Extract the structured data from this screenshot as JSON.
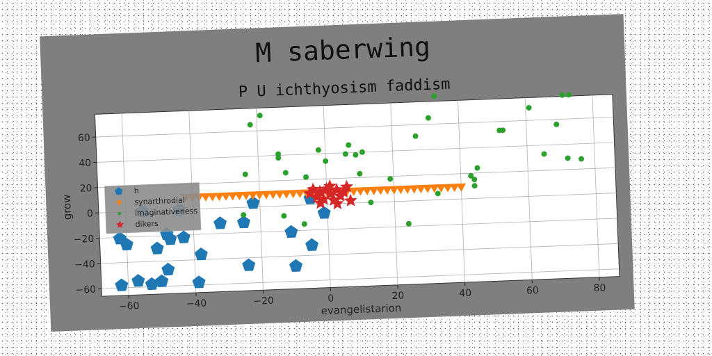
{
  "chart_data": {
    "type": "scatter",
    "title": "M saberwing",
    "subtitle": "P U ichthyosism faddism",
    "xlabel": "evangelistarion",
    "ylabel": "grow",
    "xlim": [
      -68,
      86
    ],
    "ylim": [
      -66,
      78
    ],
    "xticks": [
      -60,
      -40,
      -20,
      0,
      20,
      40,
      60,
      80
    ],
    "yticks": [
      -60,
      -40,
      -20,
      0,
      20,
      40,
      60
    ],
    "xtick_labels": [
      "−60",
      "−40",
      "−20",
      "0",
      "20",
      "40",
      "60",
      "80"
    ],
    "ytick_labels": [
      "−60",
      "−40",
      "−20",
      "0",
      "20",
      "40",
      "60"
    ],
    "grid": true,
    "legend_position": "center-left",
    "series": [
      {
        "name": "h",
        "marker": "pentagon",
        "color": "#1f77b4",
        "points": [
          [
            -62,
            -21
          ],
          [
            -60,
            -26
          ],
          [
            -62,
            -58
          ],
          [
            -57,
            -55
          ],
          [
            -53,
            -58
          ],
          [
            -50,
            -56
          ],
          [
            -48,
            -47
          ],
          [
            -51,
            -30
          ],
          [
            -48,
            -19
          ],
          [
            -47,
            -23
          ],
          [
            -43,
            -22
          ],
          [
            -39,
            -58
          ],
          [
            -38,
            -36
          ],
          [
            -32,
            -12
          ],
          [
            -25,
            -12
          ],
          [
            -24,
            -46
          ],
          [
            -22,
            3
          ],
          [
            -11,
            -21
          ],
          [
            -10,
            -48
          ],
          [
            -5,
            -32
          ],
          [
            -5,
            5
          ],
          [
            -1,
            -7
          ],
          [
            -55,
            0
          ],
          [
            -44,
            0
          ]
        ]
      },
      {
        "name": "synarthrodial",
        "marker": "triangle-down",
        "color": "#ff7f0e",
        "points": [
          [
            -42,
            10
          ],
          [
            -40,
            10
          ],
          [
            -38,
            10
          ],
          [
            -36,
            10
          ],
          [
            -34,
            10
          ],
          [
            -32,
            10
          ],
          [
            -30,
            10
          ],
          [
            -28,
            10
          ],
          [
            -26,
            10
          ],
          [
            -24,
            10
          ],
          [
            -22,
            10
          ],
          [
            -20,
            10
          ],
          [
            -18,
            10
          ],
          [
            -16,
            10
          ],
          [
            -14,
            10
          ],
          [
            -12,
            10
          ],
          [
            -10,
            10
          ],
          [
            -8,
            10
          ],
          [
            -6,
            10
          ],
          [
            -4,
            10
          ],
          [
            -2,
            10
          ],
          [
            0,
            10
          ],
          [
            2,
            10
          ],
          [
            4,
            10
          ],
          [
            6,
            10
          ],
          [
            8,
            10
          ],
          [
            10,
            10
          ],
          [
            12,
            10
          ],
          [
            14,
            10
          ],
          [
            16,
            10
          ],
          [
            18,
            10
          ],
          [
            20,
            10
          ],
          [
            22,
            10
          ],
          [
            24,
            10
          ],
          [
            26,
            10
          ],
          [
            28,
            10
          ],
          [
            30,
            10
          ],
          [
            32,
            10
          ],
          [
            34,
            10
          ],
          [
            36,
            10
          ],
          [
            38,
            10
          ],
          [
            40,
            10
          ]
        ]
      },
      {
        "name": "imaginativeness",
        "marker": "circle",
        "color": "#2ca02c",
        "points": [
          [
            -22,
            65
          ],
          [
            -19,
            72
          ],
          [
            -14,
            41
          ],
          [
            -14,
            38
          ],
          [
            -12,
            26
          ],
          [
            -24,
            26
          ],
          [
            -25,
            -6
          ],
          [
            -13,
            -8
          ],
          [
            -7,
            -15
          ],
          [
            -6,
            22
          ],
          [
            -2,
            43
          ],
          [
            0,
            34
          ],
          [
            7,
            46
          ],
          [
            6,
            39
          ],
          [
            9,
            38
          ],
          [
            11,
            40
          ],
          [
            10,
            23
          ],
          [
            13,
            0
          ],
          [
            19,
            18
          ],
          [
            24,
            -18
          ],
          [
            27,
            51
          ],
          [
            31,
            65
          ],
          [
            33,
            82
          ],
          [
            33,
            5
          ],
          [
            45,
            24
          ],
          [
            43,
            18
          ],
          [
            44,
            15
          ],
          [
            44,
            10
          ],
          [
            52,
            53
          ],
          [
            53,
            53
          ],
          [
            61,
            70
          ],
          [
            65,
            33
          ],
          [
            69,
            56
          ],
          [
            71,
            79
          ],
          [
            73,
            79
          ],
          [
            72,
            29
          ],
          [
            76,
            28
          ]
        ]
      },
      {
        "name": "dikers",
        "marker": "star",
        "color": "#d62728",
        "points": [
          [
            -5,
            9
          ],
          [
            -4,
            12
          ],
          [
            -3,
            6
          ],
          [
            -2,
            10
          ],
          [
            -1,
            4
          ],
          [
            0,
            12
          ],
          [
            1,
            8
          ],
          [
            2,
            3
          ],
          [
            3,
            11
          ],
          [
            4,
            6
          ],
          [
            5,
            9
          ],
          [
            6,
            13
          ],
          [
            7,
            2
          ],
          [
            -2,
            1
          ],
          [
            3,
            0
          ],
          [
            1,
            14
          ]
        ]
      }
    ]
  }
}
